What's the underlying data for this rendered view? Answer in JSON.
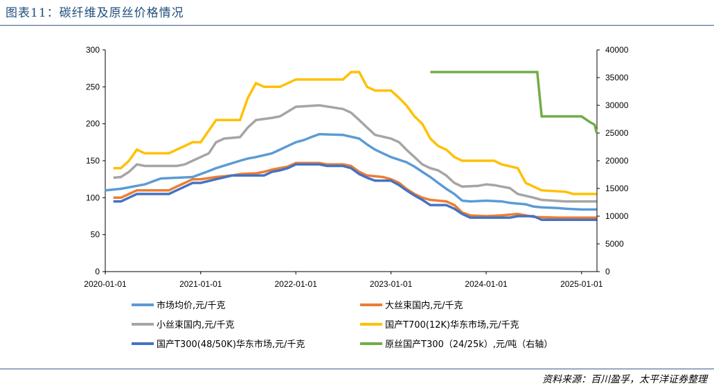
{
  "title": "图表11：碳纤维及原丝价格情况",
  "source": "资料来源：百川盈孚，太平洋证券整理",
  "chart_data": {
    "type": "line",
    "x_range": [
      "2020-01-01",
      "2025-03-01"
    ],
    "x_ticks": [
      "2020-01-01",
      "2021-01-01",
      "2022-01-01",
      "2023-01-01",
      "2024-01-01",
      "2025-01-01"
    ],
    "y_left": {
      "ylim": [
        0,
        300
      ],
      "ticks": [
        "0",
        "50",
        "100",
        "150",
        "200",
        "250",
        "300"
      ]
    },
    "y_right": {
      "ylim": [
        0,
        40000
      ],
      "ticks": [
        "0",
        "5000",
        "10000",
        "15000",
        "20000",
        "25000",
        "30000",
        "35000",
        "40000"
      ]
    },
    "grid": false,
    "legend_placement": "bottom",
    "series": [
      {
        "name": "市场均价,元/千克",
        "color": "#5b9bd5",
        "axis": "left",
        "points": [
          [
            "2020-01-01",
            110
          ],
          [
            "2020-03-01",
            112
          ],
          [
            "2020-04-01",
            114
          ],
          [
            "2020-06-01",
            118
          ],
          [
            "2020-07-01",
            122
          ],
          [
            "2020-08-01",
            126
          ],
          [
            "2020-12-01",
            128
          ],
          [
            "2021-01-01",
            132
          ],
          [
            "2021-02-01",
            136
          ],
          [
            "2021-03-01",
            140
          ],
          [
            "2021-06-01",
            150
          ],
          [
            "2021-07-01",
            153
          ],
          [
            "2021-08-01",
            155
          ],
          [
            "2021-10-01",
            160
          ],
          [
            "2021-11-01",
            165
          ],
          [
            "2021-12-01",
            170
          ],
          [
            "2022-01-01",
            175
          ],
          [
            "2022-02-01",
            178
          ],
          [
            "2022-03-01",
            182
          ],
          [
            "2022-04-01",
            186
          ],
          [
            "2022-07-01",
            185
          ],
          [
            "2022-09-01",
            180
          ],
          [
            "2022-10-01",
            172
          ],
          [
            "2022-11-01",
            165
          ],
          [
            "2022-12-01",
            160
          ],
          [
            "2023-01-01",
            155
          ],
          [
            "2023-03-01",
            148
          ],
          [
            "2023-04-01",
            142
          ],
          [
            "2023-05-01",
            135
          ],
          [
            "2023-06-01",
            128
          ],
          [
            "2023-07-01",
            120
          ],
          [
            "2023-08-01",
            112
          ],
          [
            "2023-09-01",
            105
          ],
          [
            "2023-10-01",
            96
          ],
          [
            "2023-11-01",
            95
          ],
          [
            "2024-01-01",
            96
          ],
          [
            "2024-03-01",
            95
          ],
          [
            "2024-04-01",
            93
          ],
          [
            "2024-05-01",
            92
          ],
          [
            "2024-06-01",
            91
          ],
          [
            "2024-07-01",
            88
          ],
          [
            "2024-08-01",
            87
          ],
          [
            "2024-10-01",
            86
          ],
          [
            "2024-11-01",
            85
          ],
          [
            "2025-01-01",
            84
          ],
          [
            "2025-02-28",
            84
          ]
        ]
      },
      {
        "name": "大丝束国内,元/千克",
        "color": "#ed7d31",
        "axis": "left",
        "points": [
          [
            "2020-02-01",
            100
          ],
          [
            "2020-03-01",
            100
          ],
          [
            "2020-04-01",
            105
          ],
          [
            "2020-05-01",
            110
          ],
          [
            "2020-09-01",
            110
          ],
          [
            "2020-10-01",
            115
          ],
          [
            "2020-11-01",
            120
          ],
          [
            "2020-12-01",
            125
          ],
          [
            "2021-01-01",
            125
          ],
          [
            "2021-03-01",
            128
          ],
          [
            "2021-05-01",
            130
          ],
          [
            "2021-06-01",
            132
          ],
          [
            "2021-08-01",
            133
          ],
          [
            "2021-09-01",
            135
          ],
          [
            "2021-10-01",
            138
          ],
          [
            "2021-12-01",
            142
          ],
          [
            "2022-01-01",
            147
          ],
          [
            "2022-04-01",
            147
          ],
          [
            "2022-05-01",
            145
          ],
          [
            "2022-07-01",
            145
          ],
          [
            "2022-08-01",
            143
          ],
          [
            "2022-09-01",
            135
          ],
          [
            "2022-10-01",
            130
          ],
          [
            "2022-12-01",
            128
          ],
          [
            "2023-01-01",
            125
          ],
          [
            "2023-02-01",
            120
          ],
          [
            "2023-03-01",
            112
          ],
          [
            "2023-04-01",
            105
          ],
          [
            "2023-05-01",
            100
          ],
          [
            "2023-06-01",
            97
          ],
          [
            "2023-08-01",
            95
          ],
          [
            "2023-09-01",
            90
          ],
          [
            "2023-10-01",
            80
          ],
          [
            "2023-11-01",
            76
          ],
          [
            "2024-01-01",
            75
          ],
          [
            "2024-03-01",
            76
          ],
          [
            "2024-05-01",
            78
          ],
          [
            "2024-06-01",
            76
          ],
          [
            "2024-07-01",
            74
          ],
          [
            "2024-10-01",
            73
          ],
          [
            "2025-02-28",
            73
          ]
        ]
      },
      {
        "name": "小丝束国内,元/千克",
        "color": "#a5a5a5",
        "axis": "left",
        "points": [
          [
            "2020-02-01",
            127
          ],
          [
            "2020-03-01",
            128
          ],
          [
            "2020-04-01",
            135
          ],
          [
            "2020-05-01",
            145
          ],
          [
            "2020-06-01",
            143
          ],
          [
            "2020-10-01",
            143
          ],
          [
            "2020-11-01",
            145
          ],
          [
            "2020-12-01",
            150
          ],
          [
            "2021-01-01",
            155
          ],
          [
            "2021-02-01",
            160
          ],
          [
            "2021-03-01",
            175
          ],
          [
            "2021-04-01",
            180
          ],
          [
            "2021-06-01",
            182
          ],
          [
            "2021-07-01",
            195
          ],
          [
            "2021-08-01",
            205
          ],
          [
            "2021-10-01",
            208
          ],
          [
            "2021-11-01",
            210
          ],
          [
            "2022-01-01",
            223
          ],
          [
            "2022-04-01",
            225
          ],
          [
            "2022-07-01",
            220
          ],
          [
            "2022-08-01",
            215
          ],
          [
            "2022-09-01",
            205
          ],
          [
            "2022-10-01",
            195
          ],
          [
            "2022-11-01",
            185
          ],
          [
            "2023-01-01",
            180
          ],
          [
            "2023-02-01",
            175
          ],
          [
            "2023-03-01",
            165
          ],
          [
            "2023-04-01",
            155
          ],
          [
            "2023-05-01",
            145
          ],
          [
            "2023-06-01",
            140
          ],
          [
            "2023-07-01",
            137
          ],
          [
            "2023-08-01",
            130
          ],
          [
            "2023-09-01",
            120
          ],
          [
            "2023-10-01",
            115
          ],
          [
            "2023-12-01",
            116
          ],
          [
            "2024-01-01",
            118
          ],
          [
            "2024-02-01",
            117
          ],
          [
            "2024-03-01",
            115
          ],
          [
            "2024-04-01",
            113
          ],
          [
            "2024-05-01",
            105
          ],
          [
            "2024-07-01",
            100
          ],
          [
            "2024-08-01",
            97
          ],
          [
            "2024-11-01",
            95
          ],
          [
            "2025-02-28",
            95
          ]
        ]
      },
      {
        "name": "国产T700(12K)华东市场,元/千克",
        "color": "#ffc000",
        "axis": "left",
        "points": [
          [
            "2020-02-01",
            140
          ],
          [
            "2020-03-01",
            140
          ],
          [
            "2020-04-01",
            150
          ],
          [
            "2020-05-01",
            165
          ],
          [
            "2020-06-01",
            160
          ],
          [
            "2020-09-01",
            160
          ],
          [
            "2020-10-01",
            165
          ],
          [
            "2020-11-01",
            170
          ],
          [
            "2020-12-01",
            175
          ],
          [
            "2021-01-01",
            175
          ],
          [
            "2021-03-01",
            205
          ],
          [
            "2021-04-01",
            205
          ],
          [
            "2021-06-01",
            205
          ],
          [
            "2021-07-01",
            235
          ],
          [
            "2021-08-01",
            255
          ],
          [
            "2021-09-01",
            250
          ],
          [
            "2021-11-01",
            250
          ],
          [
            "2022-01-01",
            260
          ],
          [
            "2022-05-01",
            260
          ],
          [
            "2022-07-01",
            260
          ],
          [
            "2022-08-01",
            270
          ],
          [
            "2022-09-01",
            270
          ],
          [
            "2022-10-01",
            250
          ],
          [
            "2022-11-01",
            245
          ],
          [
            "2023-01-01",
            245
          ],
          [
            "2023-02-01",
            235
          ],
          [
            "2023-03-01",
            225
          ],
          [
            "2023-04-01",
            210
          ],
          [
            "2023-05-01",
            200
          ],
          [
            "2023-06-01",
            180
          ],
          [
            "2023-07-01",
            170
          ],
          [
            "2023-08-01",
            165
          ],
          [
            "2023-09-01",
            155
          ],
          [
            "2023-10-01",
            150
          ],
          [
            "2024-01-01",
            150
          ],
          [
            "2024-02-01",
            150
          ],
          [
            "2024-03-01",
            145
          ],
          [
            "2024-05-01",
            140
          ],
          [
            "2024-06-01",
            120
          ],
          [
            "2024-07-01",
            115
          ],
          [
            "2024-08-01",
            110
          ],
          [
            "2024-11-01",
            108
          ],
          [
            "2024-12-01",
            105
          ],
          [
            "2025-02-28",
            105
          ]
        ]
      },
      {
        "name": "国产T300(48/50K)华东市场,元/千克",
        "color": "#4472c4",
        "axis": "left",
        "points": [
          [
            "2020-02-01",
            95
          ],
          [
            "2020-03-01",
            95
          ],
          [
            "2020-04-01",
            100
          ],
          [
            "2020-05-01",
            105
          ],
          [
            "2020-09-01",
            105
          ],
          [
            "2020-10-01",
            110
          ],
          [
            "2020-11-01",
            115
          ],
          [
            "2020-12-01",
            120
          ],
          [
            "2021-01-01",
            120
          ],
          [
            "2021-03-01",
            125
          ],
          [
            "2021-05-01",
            130
          ],
          [
            "2021-09-01",
            130
          ],
          [
            "2021-10-01",
            135
          ],
          [
            "2021-11-01",
            137
          ],
          [
            "2021-12-01",
            140
          ],
          [
            "2022-01-01",
            145
          ],
          [
            "2022-04-01",
            145
          ],
          [
            "2022-05-01",
            143
          ],
          [
            "2022-07-01",
            143
          ],
          [
            "2022-08-01",
            140
          ],
          [
            "2022-09-01",
            132
          ],
          [
            "2022-10-01",
            127
          ],
          [
            "2022-11-01",
            123
          ],
          [
            "2023-01-01",
            123
          ],
          [
            "2023-02-01",
            117
          ],
          [
            "2023-03-01",
            110
          ],
          [
            "2023-04-01",
            103
          ],
          [
            "2023-05-01",
            97
          ],
          [
            "2023-06-01",
            90
          ],
          [
            "2023-08-01",
            90
          ],
          [
            "2023-09-01",
            85
          ],
          [
            "2023-10-01",
            78
          ],
          [
            "2023-11-01",
            73
          ],
          [
            "2024-01-01",
            73
          ],
          [
            "2024-04-01",
            73
          ],
          [
            "2024-05-01",
            75
          ],
          [
            "2024-07-01",
            75
          ],
          [
            "2024-08-01",
            70
          ],
          [
            "2025-02-28",
            70
          ]
        ]
      },
      {
        "name": "原丝国产T300（24/25k）,元/吨（右轴）",
        "color": "#70ad47",
        "axis": "right",
        "points": [
          [
            "2023-06-01",
            36000
          ],
          [
            "2024-01-01",
            36000
          ],
          [
            "2024-07-15",
            36000
          ],
          [
            "2024-08-01",
            28000
          ],
          [
            "2025-01-01",
            28000
          ],
          [
            "2025-02-01",
            27000
          ],
          [
            "2025-02-20",
            26500
          ],
          [
            "2025-02-28",
            25000
          ]
        ]
      }
    ]
  }
}
